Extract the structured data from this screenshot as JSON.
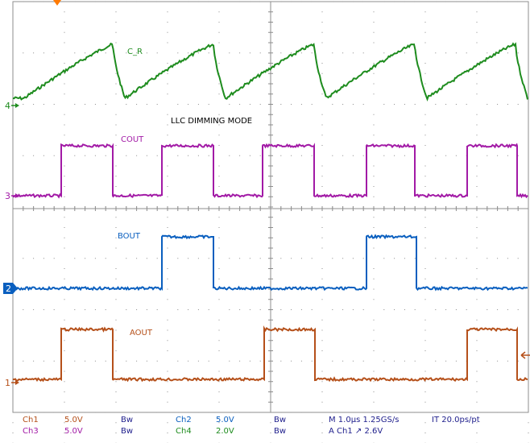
{
  "title": "LLC DIMMING MODE",
  "colors": {
    "ch1": "#b5501a",
    "ch2": "#0a5fbf",
    "ch3": "#a21aa6",
    "ch4": "#1e8c1e",
    "grid": "#8c8c8c",
    "status_text": "#1e1e8c"
  },
  "channels": [
    {
      "id": "ch4",
      "marker": "4",
      "label": "C_R"
    },
    {
      "id": "ch3",
      "marker": "3",
      "label": "COUT"
    },
    {
      "id": "ch2",
      "marker": "2",
      "label": "BOUT"
    },
    {
      "id": "ch1",
      "marker": "1",
      "label": "AOUT"
    }
  ],
  "status": {
    "ch1": {
      "name": "Ch1",
      "scale": "5.0V",
      "bw": "Bw"
    },
    "ch2": {
      "name": "Ch2",
      "scale": "5.0V",
      "bw": "Bw"
    },
    "ch3": {
      "name": "Ch3",
      "scale": "5.0V",
      "bw": "Bw"
    },
    "ch4": {
      "name": "Ch4",
      "scale": "2.0V",
      "bw": "Bw"
    },
    "timebase": "M 1.0µs 1.25GS/s",
    "sample": "IT 20.0ps/pt",
    "trigger": "A Ch1 ↗ 2.6V"
  }
}
